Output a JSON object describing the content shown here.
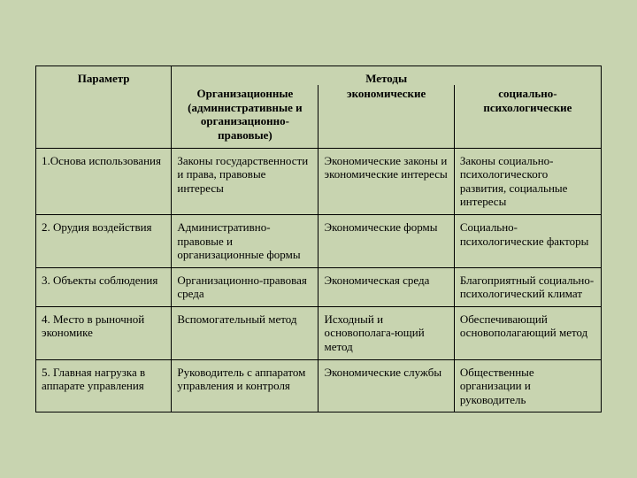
{
  "title_bg": "#c8d4b0",
  "headers": {
    "parameter": "Параметр",
    "methods": "Методы",
    "organizational": "Организационные (административные и организационно-правовые)",
    "economic": "экономические",
    "social": "социально-психологические"
  },
  "rows": [
    {
      "param": "1.Основа использования",
      "org": "Законы государственности и права, правовые интересы",
      "eco": "Экономические законы и экономические интересы",
      "soc": "Законы социально-психологического развития, социальные интересы"
    },
    {
      "param": "2. Орудия воздействия",
      "org": "Административно-правовые и организационные формы",
      "eco": "Экономические формы",
      "soc": "Социально-психологические факторы"
    },
    {
      "param": "3. Объекты соблюдения",
      "org": "Организационно-правовая среда",
      "eco": "Экономическая среда",
      "soc": "Благоприятный социально-психологический климат"
    },
    {
      "param": "4. Место в рыночной экономике",
      "org": "Вспомогательный метод",
      "eco": "Исходный и основополага-ющий метод",
      "soc": "Обеспечивающий основополагающий метод"
    },
    {
      "param": "5. Главная нагрузка в аппарате управления",
      "org": "Руководитель с аппаратом управления и контроля",
      "eco": "Экономические службы",
      "soc": "Общественные организации и руководитель"
    }
  ]
}
